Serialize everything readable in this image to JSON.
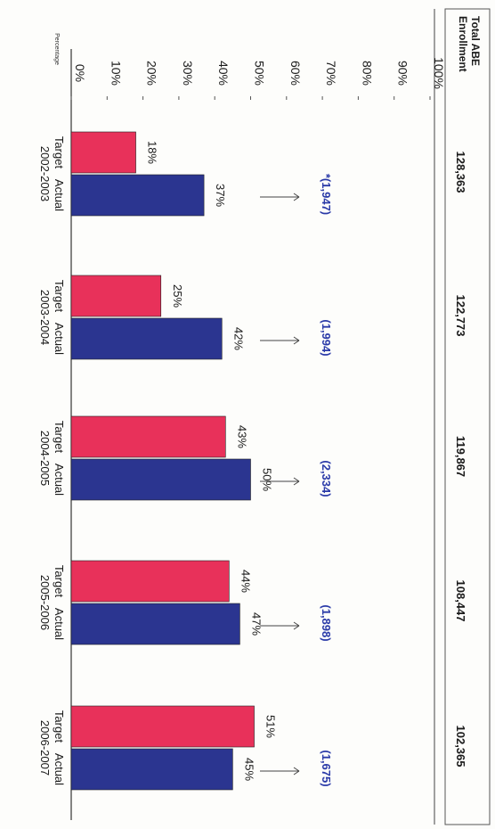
{
  "chart_data": {
    "type": "bar",
    "orientation": "vertical",
    "ylabel": "Percentage",
    "ylim": [
      0,
      100
    ],
    "yticks": [
      "0%",
      "10%",
      "20%",
      "30%",
      "40%",
      "50%",
      "60%",
      "70%",
      "80%",
      "90%",
      "100%"
    ],
    "bar_labels": [
      "Target",
      "Actual"
    ],
    "categories": [
      "2002-2003",
      "2003-2004",
      "2004-2005",
      "2005-2006",
      "2006-2007"
    ],
    "series": [
      {
        "name": "Target",
        "color": "#e8315a",
        "values": [
          18,
          25,
          43,
          44,
          51
        ],
        "labels": [
          "18%",
          "25%",
          "43%",
          "44%",
          "51%"
        ]
      },
      {
        "name": "Actual",
        "color": "#2b3590",
        "values": [
          37,
          42,
          50,
          47,
          45
        ],
        "labels": [
          "37%",
          "42%",
          "50%",
          "47%",
          "45%"
        ]
      }
    ],
    "annotations": [
      "*(1,947)",
      "(1,994)",
      "(2,334)",
      "(1,898)",
      "(1,675)"
    ],
    "annotation_color": "#2a3aa8",
    "enrollment_header": [
      "Total ABE",
      "Enrollment"
    ],
    "enrollment": [
      "128,363",
      "122,773",
      "119,867",
      "108,447",
      "102,365"
    ]
  }
}
